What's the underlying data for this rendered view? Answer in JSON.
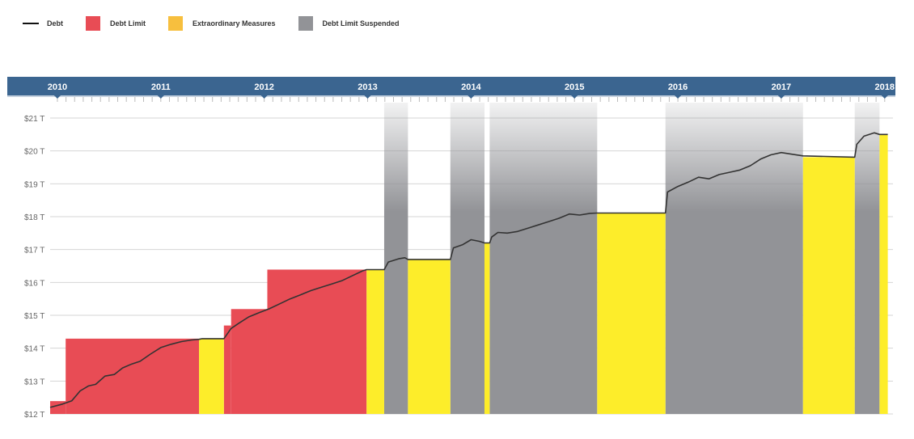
{
  "legend": {
    "debt": "Debt",
    "debt_limit": "Debt Limit",
    "extraordinary": "Extraordinary Measures",
    "suspended": "Debt Limit Suspended"
  },
  "colors": {
    "debt_line": "#333333",
    "debt_limit": "#E84C55",
    "extraordinary": "#FDED2A",
    "extraordinary_legend": "#F7BF3E",
    "suspended": "#929397",
    "timeline_bar": "#3B6590"
  },
  "chart_data": {
    "type": "area",
    "x_unit": "year",
    "x_ticks": [
      "2010",
      "2011",
      "2012",
      "2013",
      "2014",
      "2015",
      "2016",
      "2017",
      "2018"
    ],
    "y_ticks": [
      "$12 T",
      "$13 T",
      "$14 T",
      "$15 T",
      "$16 T",
      "$17 T",
      "$18 T",
      "$19 T",
      "$20 T",
      "$21 T"
    ],
    "xlim": [
      2009.93,
      2018.08
    ],
    "ylim": [
      12,
      21
    ],
    "grid": true,
    "legend_position": "top-left",
    "debt_limit_periods": [
      {
        "start": 2009.93,
        "end": 2010.08,
        "value": 12.39
      },
      {
        "start": 2010.08,
        "end": 2011.37,
        "value": 14.29
      },
      {
        "start": 2011.61,
        "end": 2011.68,
        "value": 14.69
      },
      {
        "start": 2011.68,
        "end": 2012.03,
        "value": 15.19
      },
      {
        "start": 2012.03,
        "end": 2012.99,
        "value": 16.39
      }
    ],
    "extraordinary_measures_periods": [
      {
        "start": 2011.37,
        "end": 2011.61,
        "value": 14.29
      },
      {
        "start": 2012.99,
        "end": 2013.16,
        "value": 16.39
      },
      {
        "start": 2013.39,
        "end": 2013.8,
        "value": 16.7
      },
      {
        "start": 2014.13,
        "end": 2014.18,
        "value": 17.2
      },
      {
        "start": 2015.22,
        "end": 2015.88,
        "value": 18.11
      },
      {
        "start": 2017.21,
        "end": 2017.71,
        "value": 19.81
      },
      {
        "start": 2017.95,
        "end": 2018.03,
        "value": 20.5
      }
    ],
    "debt_limit_suspended_periods": [
      {
        "start": 2013.16,
        "end": 2013.39
      },
      {
        "start": 2013.8,
        "end": 2014.13
      },
      {
        "start": 2014.18,
        "end": 2015.22
      },
      {
        "start": 2015.88,
        "end": 2017.21
      },
      {
        "start": 2017.71,
        "end": 2017.95
      }
    ],
    "debt_series": {
      "name": "Debt",
      "points": [
        [
          2009.93,
          12.2
        ],
        [
          2010.05,
          12.3
        ],
        [
          2010.14,
          12.4
        ],
        [
          2010.22,
          12.7
        ],
        [
          2010.3,
          12.85
        ],
        [
          2010.37,
          12.9
        ],
        [
          2010.46,
          13.15
        ],
        [
          2010.55,
          13.2
        ],
        [
          2010.63,
          13.4
        ],
        [
          2010.72,
          13.52
        ],
        [
          2010.8,
          13.6
        ],
        [
          2010.9,
          13.82
        ],
        [
          2011.0,
          14.02
        ],
        [
          2011.1,
          14.12
        ],
        [
          2011.2,
          14.2
        ],
        [
          2011.3,
          14.25
        ],
        [
          2011.37,
          14.27
        ],
        [
          2011.4,
          14.29
        ],
        [
          2011.61,
          14.29
        ],
        [
          2011.68,
          14.6
        ],
        [
          2011.75,
          14.75
        ],
        [
          2011.85,
          14.95
        ],
        [
          2011.95,
          15.08
        ],
        [
          2012.05,
          15.2
        ],
        [
          2012.15,
          15.35
        ],
        [
          2012.25,
          15.5
        ],
        [
          2012.35,
          15.62
        ],
        [
          2012.45,
          15.75
        ],
        [
          2012.55,
          15.85
        ],
        [
          2012.65,
          15.95
        ],
        [
          2012.75,
          16.05
        ],
        [
          2012.85,
          16.2
        ],
        [
          2012.95,
          16.35
        ],
        [
          2012.99,
          16.39
        ],
        [
          2013.16,
          16.39
        ],
        [
          2013.2,
          16.62
        ],
        [
          2013.3,
          16.72
        ],
        [
          2013.36,
          16.75
        ],
        [
          2013.39,
          16.7
        ],
        [
          2013.8,
          16.7
        ],
        [
          2013.83,
          17.05
        ],
        [
          2013.92,
          17.15
        ],
        [
          2014.0,
          17.3
        ],
        [
          2014.08,
          17.25
        ],
        [
          2014.13,
          17.2
        ],
        [
          2014.18,
          17.2
        ],
        [
          2014.2,
          17.38
        ],
        [
          2014.26,
          17.52
        ],
        [
          2014.35,
          17.5
        ],
        [
          2014.45,
          17.55
        ],
        [
          2014.55,
          17.65
        ],
        [
          2014.65,
          17.75
        ],
        [
          2014.75,
          17.85
        ],
        [
          2014.85,
          17.95
        ],
        [
          2014.95,
          18.08
        ],
        [
          2015.05,
          18.05
        ],
        [
          2015.15,
          18.1
        ],
        [
          2015.22,
          18.11
        ],
        [
          2015.88,
          18.11
        ],
        [
          2015.9,
          18.75
        ],
        [
          2016.0,
          18.92
        ],
        [
          2016.1,
          19.05
        ],
        [
          2016.2,
          19.2
        ],
        [
          2016.3,
          19.15
        ],
        [
          2016.4,
          19.28
        ],
        [
          2016.5,
          19.35
        ],
        [
          2016.6,
          19.42
        ],
        [
          2016.7,
          19.55
        ],
        [
          2016.8,
          19.75
        ],
        [
          2016.9,
          19.88
        ],
        [
          2017.0,
          19.95
        ],
        [
          2017.1,
          19.9
        ],
        [
          2017.21,
          19.85
        ],
        [
          2017.71,
          19.81
        ],
        [
          2017.73,
          20.2
        ],
        [
          2017.8,
          20.45
        ],
        [
          2017.9,
          20.55
        ],
        [
          2017.95,
          20.5
        ],
        [
          2018.03,
          20.5
        ]
      ]
    }
  }
}
